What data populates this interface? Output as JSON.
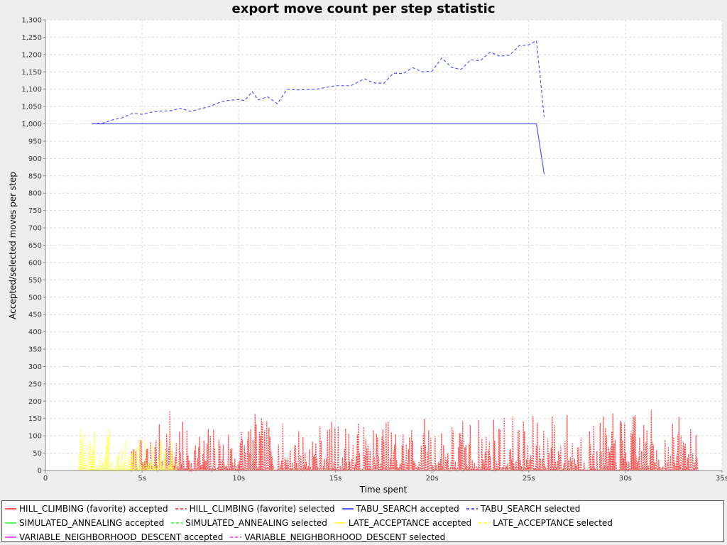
{
  "chart_data": {
    "type": "line",
    "title": "export move count per step statistic",
    "xlabel": "Time spent",
    "ylabel": "Accepted/selected moves per step",
    "xlim": [
      0,
      35
    ],
    "ylim": [
      0,
      1300
    ],
    "x_ticks": [
      {
        "value": 0,
        "label": "0"
      },
      {
        "value": 5,
        "label": "5s"
      },
      {
        "value": 10,
        "label": "10s"
      },
      {
        "value": 15,
        "label": "15s"
      },
      {
        "value": 20,
        "label": "20s"
      },
      {
        "value": 25,
        "label": "25s"
      },
      {
        "value": 30,
        "label": "30s"
      },
      {
        "value": 35,
        "label": "35s"
      }
    ],
    "y_ticks": [
      {
        "value": 0,
        "label": "0"
      },
      {
        "value": 50,
        "label": "50"
      },
      {
        "value": 100,
        "label": "100"
      },
      {
        "value": 150,
        "label": "150"
      },
      {
        "value": 200,
        "label": "200"
      },
      {
        "value": 250,
        "label": "250"
      },
      {
        "value": 300,
        "label": "300"
      },
      {
        "value": 350,
        "label": "350"
      },
      {
        "value": 400,
        "label": "400"
      },
      {
        "value": 450,
        "label": "450"
      },
      {
        "value": 500,
        "label": "500"
      },
      {
        "value": 550,
        "label": "550"
      },
      {
        "value": 600,
        "label": "600"
      },
      {
        "value": 650,
        "label": "650"
      },
      {
        "value": 700,
        "label": "700"
      },
      {
        "value": 750,
        "label": "750"
      },
      {
        "value": 800,
        "label": "800"
      },
      {
        "value": 850,
        "label": "850"
      },
      {
        "value": 900,
        "label": "900"
      },
      {
        "value": 950,
        "label": "950"
      },
      {
        "value": 1000,
        "label": "1,000"
      },
      {
        "value": 1050,
        "label": "1,050"
      },
      {
        "value": 1100,
        "label": "1,100"
      },
      {
        "value": 1150,
        "label": "1,150"
      },
      {
        "value": 1200,
        "label": "1,200"
      },
      {
        "value": 1250,
        "label": "1,250"
      },
      {
        "value": 1300,
        "label": "1,300"
      }
    ],
    "grid": true,
    "legend_position": "bottom",
    "series": [
      {
        "name": "HILL_CLIMBING (favorite) accepted",
        "color": "#ff5555",
        "style": "solid",
        "x": [
          4.4,
          10,
          15,
          20,
          25,
          30,
          33.8
        ],
        "y": [
          1,
          1,
          1,
          1,
          1,
          1,
          1
        ]
      },
      {
        "name": "HILL_CLIMBING (favorite) selected",
        "color": "#ff5555",
        "style": "dashed",
        "noisy": true,
        "seed": 7,
        "x": [
          4.4,
          5,
          6,
          6.4,
          7,
          8,
          10,
          10.4,
          12,
          15,
          17,
          20,
          22,
          23.5,
          25,
          26.5,
          28,
          30,
          31.9,
          33.8
        ],
        "y": [
          40,
          60,
          90,
          130,
          90,
          80,
          90,
          110,
          85,
          90,
          90,
          100,
          95,
          110,
          95,
          120,
          90,
          110,
          110,
          90
        ]
      },
      {
        "name": "TABU_SEARCH accepted",
        "color": "#5555ff",
        "style": "solid",
        "x": [
          2.4,
          25.4,
          25.8
        ],
        "y": [
          1000,
          1000,
          855
        ]
      },
      {
        "name": "TABU_SEARCH selected",
        "color": "#5555ff",
        "style": "dashed",
        "x": [
          2.4,
          3,
          3.5,
          4,
          4.5,
          5,
          5.5,
          6,
          6.5,
          7,
          7.5,
          8,
          8.5,
          9,
          9.5,
          10,
          10.3,
          10.7,
          11,
          11.5,
          12,
          12.5,
          13,
          14,
          15,
          15.8,
          16.5,
          17,
          17.5,
          18,
          18.5,
          19,
          19.5,
          20,
          20.5,
          21,
          21.5,
          22,
          22.5,
          23,
          23.5,
          24,
          24.5,
          25,
          25.4,
          25.8
        ],
        "y": [
          1000,
          1003,
          1012,
          1018,
          1030,
          1028,
          1034,
          1037,
          1038,
          1045,
          1036,
          1043,
          1050,
          1062,
          1068,
          1070,
          1067,
          1093,
          1069,
          1078,
          1058,
          1100,
          1098,
          1100,
          1110,
          1110,
          1130,
          1118,
          1117,
          1146,
          1145,
          1162,
          1150,
          1152,
          1190,
          1163,
          1157,
          1185,
          1182,
          1207,
          1195,
          1198,
          1225,
          1228,
          1240,
          1020
        ]
      },
      {
        "name": "SIMULATED_ANNEALING accepted",
        "color": "#55ff55",
        "style": "solid",
        "x": [],
        "y": []
      },
      {
        "name": "SIMULATED_ANNEALING selected",
        "color": "#55ff55",
        "style": "dashed",
        "x": [],
        "y": []
      },
      {
        "name": "LATE_ACCEPTANCE accepted",
        "color": "#ffff55",
        "style": "solid",
        "x": [
          1.7,
          4.5,
          6.8
        ],
        "y": [
          1,
          1,
          1
        ]
      },
      {
        "name": "LATE_ACCEPTANCE selected",
        "color": "#ffff55",
        "style": "dashed",
        "noisy": true,
        "seed": 3,
        "x": [
          1.7,
          2,
          3,
          4,
          5,
          5.5,
          6.5,
          6.8
        ],
        "y": [
          110,
          90,
          80,
          70,
          60,
          80,
          55,
          40
        ]
      },
      {
        "name": "VARIABLE_NEIGHBORHOOD_DESCENT accepted",
        "color": "#ff55ff",
        "style": "solid",
        "x": [],
        "y": []
      },
      {
        "name": "VARIABLE_NEIGHBORHOOD_DESCENT selected",
        "color": "#ff55ff",
        "style": "dashed",
        "x": [],
        "y": []
      }
    ]
  }
}
